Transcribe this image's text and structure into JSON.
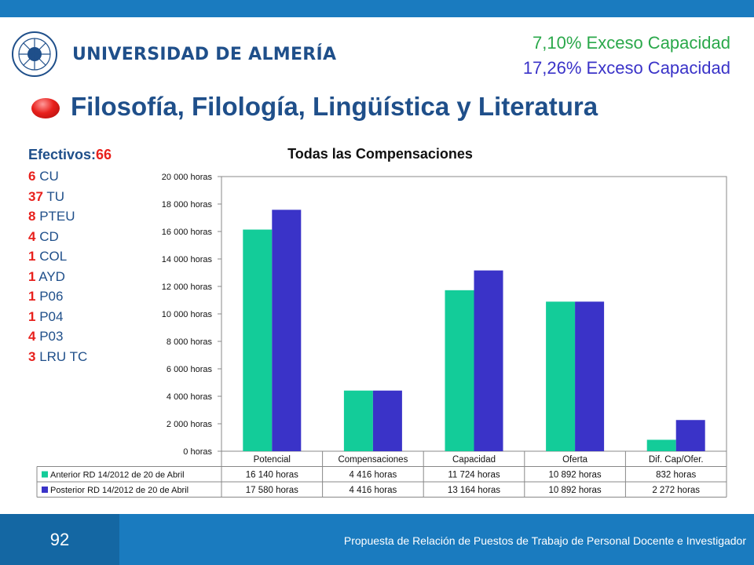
{
  "header": {
    "logo_text": "UNIVERSIDAD DE ALMERÍA",
    "excess_lines": [
      {
        "pct": "7,10%",
        "text": " Exceso Capacidad",
        "color": "#2aa84a"
      },
      {
        "pct": "17,26%",
        "text": " Exceso Capacidad",
        "color": "#3a33c8"
      }
    ],
    "title": "Filosofía, Filología, Lingüística y Literatura"
  },
  "staff": {
    "label": "Efectivos:",
    "total": "66",
    "rows": [
      {
        "count": "6",
        "code": " CU"
      },
      {
        "count": "37",
        "code": " TU"
      },
      {
        "count": "8",
        "code": " PTEU"
      },
      {
        "count": "4",
        "code": " CD"
      },
      {
        "count": "1",
        "code": " COL"
      },
      {
        "count": "1",
        "code": " AYD"
      },
      {
        "count": "1",
        "code": " P06"
      },
      {
        "count": "1",
        "code": " P04"
      },
      {
        "count": "4",
        "code": " P03"
      },
      {
        "count": "3",
        "code": " LRU TC"
      }
    ]
  },
  "chart_data": {
    "type": "bar",
    "title": "Todas las Compensaciones",
    "categories": [
      "Potencial",
      "Compensaciones",
      "Capacidad",
      "Oferta",
      "Dif. Cap/Ofer."
    ],
    "series": [
      {
        "name": "Anterior RD 14/2012 de 20 de Abril",
        "color": "#13cc99",
        "values": [
          16140,
          4416,
          11724,
          10892,
          832
        ],
        "labels": [
          "16 140 horas",
          "4 416 horas",
          "11 724 horas",
          "10 892 horas",
          "832 horas"
        ]
      },
      {
        "name": "Posterior RD 14/2012 de 20 de Abril",
        "color": "#3a33c8",
        "values": [
          17580,
          4416,
          13164,
          10892,
          2272
        ],
        "labels": [
          "17 580 horas",
          "4 416 horas",
          "13 164 horas",
          "10 892 horas",
          "2 272 horas"
        ]
      }
    ],
    "ylim": [
      0,
      20000
    ],
    "y_ticks": [
      "0 horas",
      "2 000 horas",
      "4 000 horas",
      "6 000 horas",
      "8 000 horas",
      "10 000 horas",
      "12 000 horas",
      "14 000 horas",
      "16 000 horas",
      "18 000 horas",
      "20 000 horas"
    ],
    "legend": "data-table below chart",
    "grid": false
  },
  "footer": {
    "page_number": "92",
    "text": "Propuesta de Relación de Puestos de Trabajo de Personal Docente e Investigador"
  }
}
